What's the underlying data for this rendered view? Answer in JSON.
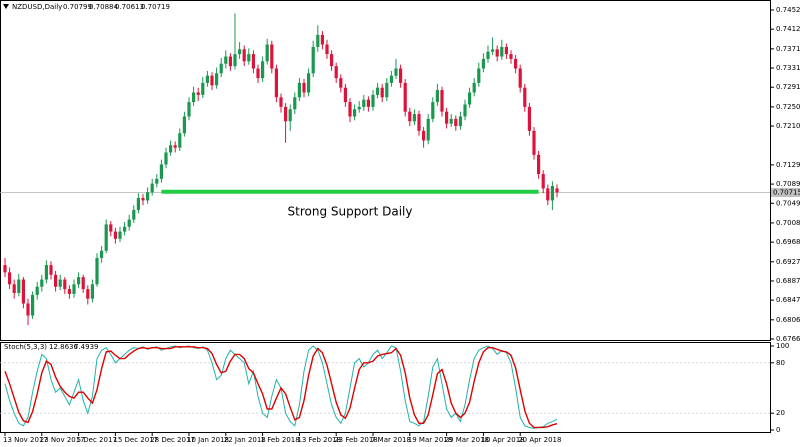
{
  "chart_data": {
    "type": "candlestick",
    "symbol": "NZDUSD,Daily",
    "colors": {
      "up": "#1a9850",
      "down": "#dc143c"
    },
    "ylim": [
      0.6766,
      0.7452
    ],
    "yticks": [
      {
        "value": 0.7452,
        "label": "0.74520"
      },
      {
        "value": 0.7412,
        "label": "0.74120"
      },
      0.7371,
      {
        "value": 0.7331,
        "label": "0.73310"
      },
      0.7291,
      {
        "value": 0.725,
        "label": "0.72500"
      },
      {
        "value": 0.721,
        "label": "0.72100"
      },
      {
        "value": 0.7129,
        "label": "0.71290"
      },
      {
        "value": 0.7089,
        "label": "0.70890"
      },
      {
        "value": 0.7049,
        "label": "0.70490"
      },
      {
        "value": 0.7008,
        "label": "0.70080"
      },
      {
        "value": 0.6968,
        "label": "0.69680"
      },
      {
        "value": 0.6927,
        "label": "0.69270"
      },
      {
        "value": 0.6887,
        "label": "0.68870"
      },
      {
        "value": 0.6847,
        "label": "0.68470"
      },
      {
        "value": 0.6806,
        "label": "0.68060"
      },
      {
        "value": 0.6766,
        "label": "0.67660"
      }
    ],
    "current_price": 0.70715,
    "xticks": [
      {
        "value": 0,
        "label": "13 Nov 2017"
      },
      {
        "value": 8,
        "label": "23 Nov 2017"
      },
      {
        "value": 16,
        "label": "5 Dec 2017"
      },
      {
        "value": 24,
        "label": "15 Dec 2017"
      },
      {
        "value": 32,
        "label": "28 Dec 2017"
      },
      {
        "value": 40,
        "label": "10 Jan 2018"
      },
      {
        "value": 48,
        "label": "22 Jan 2018"
      },
      {
        "value": 56,
        "label": "1 Feb 2018"
      },
      {
        "value": 64,
        "label": "13 Feb 2018"
      },
      {
        "value": 72,
        "label": "23 Feb 2018"
      },
      {
        "value": 80,
        "label": "7 Mar 2018"
      },
      {
        "value": 88,
        "label": "19 Mar 2018"
      },
      {
        "value": 96,
        "label": "29 Mar 2018"
      },
      {
        "value": 104,
        "label": "10 Apr 2018"
      },
      {
        "value": 112,
        "label": "20 Apr 2018"
      }
    ],
    "annotations": [
      {
        "text": "Strong Support Daily",
        "value": 0.7073,
        "from": 34,
        "to": 116,
        "color": "#22cc44"
      }
    ],
    "ohlc": [
      [
        0.692,
        0.6935,
        0.6895,
        0.6905
      ],
      [
        0.6905,
        0.6915,
        0.687,
        0.688
      ],
      [
        0.688,
        0.689,
        0.685,
        0.6862
      ],
      [
        0.6862,
        0.6902,
        0.6855,
        0.689
      ],
      [
        0.689,
        0.6895,
        0.683,
        0.684
      ],
      [
        0.684,
        0.685,
        0.6795,
        0.6815
      ],
      [
        0.6815,
        0.6865,
        0.6808,
        0.6858
      ],
      [
        0.6858,
        0.6885,
        0.6848,
        0.6875
      ],
      [
        0.6875,
        0.69,
        0.6865,
        0.689
      ],
      [
        0.689,
        0.693,
        0.6882,
        0.692
      ],
      [
        0.692,
        0.6928,
        0.689,
        0.69
      ],
      [
        0.69,
        0.6908,
        0.6865,
        0.6875
      ],
      [
        0.6875,
        0.69,
        0.6868,
        0.689
      ],
      [
        0.689,
        0.6895,
        0.686,
        0.687
      ],
      [
        0.687,
        0.6878,
        0.685,
        0.686
      ],
      [
        0.686,
        0.689,
        0.6852,
        0.688
      ],
      [
        0.688,
        0.6905,
        0.6872,
        0.6895
      ],
      [
        0.6895,
        0.69,
        0.6862,
        0.687
      ],
      [
        0.687,
        0.6878,
        0.6838,
        0.685
      ],
      [
        0.685,
        0.689,
        0.6842,
        0.688
      ],
      [
        0.688,
        0.6945,
        0.6875,
        0.6935
      ],
      [
        0.6935,
        0.696,
        0.6925,
        0.695
      ],
      [
        0.695,
        0.7015,
        0.6945,
        0.7005
      ],
      [
        0.7005,
        0.7012,
        0.698,
        0.699
      ],
      [
        0.699,
        0.6998,
        0.6965,
        0.6975
      ],
      [
        0.6975,
        0.7,
        0.6968,
        0.699
      ],
      [
        0.699,
        0.701,
        0.6982,
        0.7
      ],
      [
        0.7,
        0.7025,
        0.6992,
        0.7015
      ],
      [
        0.7015,
        0.7045,
        0.7008,
        0.7035
      ],
      [
        0.7035,
        0.707,
        0.7028,
        0.706
      ],
      [
        0.706,
        0.7068,
        0.7045,
        0.7055
      ],
      [
        0.7055,
        0.7082,
        0.7048,
        0.7072
      ],
      [
        0.7072,
        0.71,
        0.7065,
        0.709
      ],
      [
        0.709,
        0.711,
        0.7082,
        0.71
      ],
      [
        0.71,
        0.714,
        0.7092,
        0.713
      ],
      [
        0.713,
        0.7165,
        0.7122,
        0.7155
      ],
      [
        0.7155,
        0.718,
        0.7148,
        0.717
      ],
      [
        0.717,
        0.7178,
        0.7155,
        0.7165
      ],
      [
        0.7165,
        0.7205,
        0.7158,
        0.7195
      ],
      [
        0.7195,
        0.724,
        0.7188,
        0.723
      ],
      [
        0.723,
        0.727,
        0.7222,
        0.726
      ],
      [
        0.726,
        0.7292,
        0.7252,
        0.728
      ],
      [
        0.728,
        0.729,
        0.7262,
        0.7275
      ],
      [
        0.7275,
        0.7312,
        0.7268,
        0.73
      ],
      [
        0.73,
        0.7325,
        0.7292,
        0.7315
      ],
      [
        0.7315,
        0.7322,
        0.7285,
        0.7295
      ],
      [
        0.7295,
        0.7332,
        0.7288,
        0.732
      ],
      [
        0.732,
        0.7352,
        0.7312,
        0.734
      ],
      [
        0.734,
        0.7368,
        0.733,
        0.7355
      ],
      [
        0.7355,
        0.7362,
        0.7325,
        0.7335
      ],
      [
        0.7335,
        0.7445,
        0.7328,
        0.736
      ],
      [
        0.736,
        0.7385,
        0.735,
        0.737
      ],
      [
        0.737,
        0.7378,
        0.7335,
        0.7345
      ],
      [
        0.7345,
        0.7372,
        0.7338,
        0.736
      ],
      [
        0.736,
        0.7368,
        0.732,
        0.733
      ],
      [
        0.733,
        0.7338,
        0.73,
        0.731
      ],
      [
        0.731,
        0.7355,
        0.7302,
        0.7345
      ],
      [
        0.7345,
        0.7392,
        0.7338,
        0.738
      ],
      [
        0.738,
        0.7388,
        0.732,
        0.733
      ],
      [
        0.733,
        0.7338,
        0.726,
        0.727
      ],
      [
        0.727,
        0.7278,
        0.7238,
        0.725
      ],
      [
        0.725,
        0.7258,
        0.7175,
        0.722
      ],
      [
        0.722,
        0.7255,
        0.72,
        0.7245
      ],
      [
        0.7245,
        0.728,
        0.7235,
        0.727
      ],
      [
        0.727,
        0.731,
        0.7262,
        0.73
      ],
      [
        0.73,
        0.7308,
        0.727,
        0.728
      ],
      [
        0.728,
        0.733,
        0.7272,
        0.732
      ],
      [
        0.732,
        0.7388,
        0.7312,
        0.7375
      ],
      [
        0.7375,
        0.742,
        0.7365,
        0.74
      ],
      [
        0.74,
        0.7408,
        0.737,
        0.738
      ],
      [
        0.738,
        0.739,
        0.735,
        0.736
      ],
      [
        0.736,
        0.7368,
        0.7325,
        0.7335
      ],
      [
        0.7335,
        0.7342,
        0.73,
        0.731
      ],
      [
        0.731,
        0.7318,
        0.728,
        0.729
      ],
      [
        0.729,
        0.7298,
        0.725,
        0.726
      ],
      [
        0.726,
        0.7268,
        0.7218,
        0.723
      ],
      [
        0.723,
        0.7255,
        0.7222,
        0.7245
      ],
      [
        0.7245,
        0.7262,
        0.7238,
        0.725
      ],
      [
        0.725,
        0.7275,
        0.7242,
        0.7265
      ],
      [
        0.7265,
        0.7272,
        0.724,
        0.725
      ],
      [
        0.725,
        0.7285,
        0.7242,
        0.7275
      ],
      [
        0.7275,
        0.73,
        0.7268,
        0.729
      ],
      [
        0.729,
        0.7298,
        0.726,
        0.727
      ],
      [
        0.727,
        0.731,
        0.7262,
        0.73
      ],
      [
        0.73,
        0.7325,
        0.7292,
        0.7315
      ],
      [
        0.7315,
        0.735,
        0.7308,
        0.733
      ],
      [
        0.733,
        0.7338,
        0.729,
        0.73
      ],
      [
        0.73,
        0.7308,
        0.723,
        0.724
      ],
      [
        0.724,
        0.7248,
        0.721,
        0.722
      ],
      [
        0.722,
        0.7245,
        0.7212,
        0.7235
      ],
      [
        0.7235,
        0.7242,
        0.719,
        0.72
      ],
      [
        0.72,
        0.7208,
        0.7165,
        0.718
      ],
      [
        0.718,
        0.7235,
        0.7172,
        0.7225
      ],
      [
        0.7225,
        0.727,
        0.7218,
        0.726
      ],
      [
        0.726,
        0.7298,
        0.7252,
        0.7285
      ],
      [
        0.7285,
        0.7292,
        0.723,
        0.724
      ],
      [
        0.724,
        0.7248,
        0.7205,
        0.7215
      ],
      [
        0.7215,
        0.7235,
        0.7208,
        0.7225
      ],
      [
        0.7225,
        0.7232,
        0.72,
        0.721
      ],
      [
        0.721,
        0.724,
        0.7202,
        0.723
      ],
      [
        0.723,
        0.7265,
        0.7222,
        0.7255
      ],
      [
        0.7255,
        0.729,
        0.7248,
        0.728
      ],
      [
        0.728,
        0.731,
        0.7272,
        0.73
      ],
      [
        0.73,
        0.7342,
        0.7292,
        0.733
      ],
      [
        0.733,
        0.7362,
        0.7322,
        0.735
      ],
      [
        0.735,
        0.7378,
        0.7342,
        0.7365
      ],
      [
        0.7365,
        0.7395,
        0.7358,
        0.737
      ],
      [
        0.737,
        0.7378,
        0.7345,
        0.7355
      ],
      [
        0.7355,
        0.739,
        0.7348,
        0.7375
      ],
      [
        0.7375,
        0.7382,
        0.735,
        0.736
      ],
      [
        0.736,
        0.7368,
        0.734,
        0.735
      ],
      [
        0.735,
        0.7358,
        0.732,
        0.733
      ],
      [
        0.733,
        0.7338,
        0.728,
        0.729
      ],
      [
        0.729,
        0.7298,
        0.724,
        0.725
      ],
      [
        0.725,
        0.7258,
        0.719,
        0.72
      ],
      [
        0.72,
        0.7208,
        0.714,
        0.715
      ],
      [
        0.715,
        0.7158,
        0.71,
        0.711
      ],
      [
        0.711,
        0.7118,
        0.707,
        0.708
      ],
      [
        0.708,
        0.7088,
        0.7045,
        0.7055
      ],
      [
        0.7055,
        0.7095,
        0.7035,
        0.7085
      ],
      [
        0.70799,
        0.70884,
        0.70613,
        0.70719
      ]
    ],
    "indicator": {
      "type": "line",
      "title": "Stoch(5,3,3)",
      "ylim": [
        0,
        100
      ],
      "yticks": [
        100,
        80,
        20,
        0
      ],
      "series": [
        {
          "color": "#20b2aa",
          "values": [
            55,
            35,
            20,
            8,
            5,
            15,
            45,
            70,
            90,
            85,
            60,
            45,
            50,
            40,
            30,
            45,
            60,
            35,
            20,
            40,
            85,
            95,
            98,
            90,
            80,
            85,
            90,
            95,
            98,
            97,
            99,
            96,
            98,
            99,
            95,
            97,
            99,
            100,
            98,
            99,
            100,
            98,
            97,
            99,
            95,
            80,
            60,
            65,
            85,
            95,
            90,
            85,
            80,
            55,
            70,
            40,
            20,
            15,
            40,
            60,
            50,
            20,
            10,
            5,
            30,
            70,
            95,
            100,
            95,
            80,
            55,
            30,
            15,
            8,
            20,
            50,
            80,
            85,
            75,
            80,
            90,
            95,
            85,
            92,
            100,
            98,
            70,
            35,
            10,
            8,
            5,
            10,
            40,
            75,
            85,
            55,
            25,
            15,
            20,
            10,
            30,
            60,
            85,
            95,
            98,
            100,
            97,
            90,
            95,
            92,
            80,
            50,
            15,
            5,
            3,
            2,
            3,
            4,
            8,
            10,
            12.8636
          ]
        },
        {
          "color": "#e00000",
          "values": [
            70,
            55,
            38,
            21,
            11,
            9,
            22,
            43,
            68,
            82,
            78,
            63,
            52,
            45,
            40,
            38,
            45,
            45,
            38,
            32,
            48,
            73,
            93,
            94,
            89,
            85,
            85,
            90,
            94,
            97,
            98,
            97,
            98,
            98,
            97,
            97,
            97,
            99,
            99,
            99,
            99,
            99,
            98,
            98,
            97,
            91,
            78,
            68,
            70,
            82,
            90,
            90,
            85,
            73,
            68,
            55,
            43,
            25,
            25,
            38,
            50,
            43,
            27,
            12,
            15,
            35,
            65,
            88,
            97,
            92,
            77,
            55,
            33,
            18,
            14,
            26,
            50,
            72,
            80,
            80,
            82,
            88,
            90,
            91,
            92,
            97,
            89,
            68,
            38,
            18,
            8,
            8,
            18,
            42,
            67,
            72,
            55,
            32,
            20,
            15,
            20,
            33,
            58,
            80,
            93,
            98,
            98,
            96,
            94,
            93,
            89,
            74,
            48,
            23,
            8,
            3,
            3,
            3,
            4,
            6,
            7.4939
          ]
        }
      ]
    }
  }
}
